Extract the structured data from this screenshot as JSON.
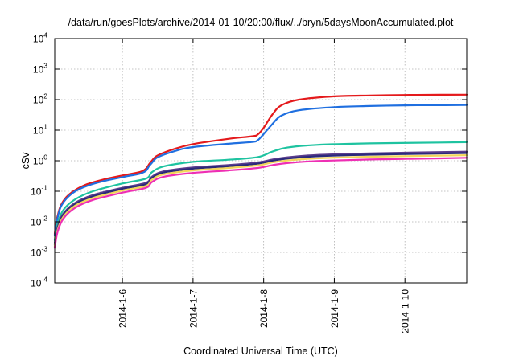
{
  "chart_data": {
    "type": "line",
    "title": "/data/run/goesPlots/archive/2014-01-10/20:00/flux/../bryn/5daysMoonAccumulated.plot",
    "xlabel": "Coordinated Universal Time (UTC)",
    "ylabel": "cSv",
    "y_scale": "log",
    "xlim": [
      "2014-01-05 01:00",
      "2014-01-10 21:00"
    ],
    "ylim": [
      0.0001,
      10000
    ],
    "grid": true,
    "x_ticks": [
      "2014-1-6",
      "2014-1-7",
      "2014-1-8",
      "2014-1-9",
      "2014-1-10"
    ],
    "y_ticks": [
      {
        "base": "10",
        "exp": "-4"
      },
      {
        "base": "10",
        "exp": "-3"
      },
      {
        "base": "10",
        "exp": "-2"
      },
      {
        "base": "10",
        "exp": "-1"
      },
      {
        "base": "10",
        "exp": "0"
      },
      {
        "base": "10",
        "exp": "1"
      },
      {
        "base": "10",
        "exp": "2"
      },
      {
        "base": "10",
        "exp": "3"
      },
      {
        "base": "10",
        "exp": "4"
      }
    ],
    "series": [
      {
        "color": "#e41a1c",
        "x": [
          "2014-01-05 01:00",
          "2014-01-05 01:30",
          "2014-01-05 02:00",
          "2014-01-05 03:00",
          "2014-01-05 05:00",
          "2014-01-05 08:00",
          "2014-01-05 12:00",
          "2014-01-05 18:00",
          "2014-01-06 00:00",
          "2014-01-06 06:00",
          "2014-01-06 08:00",
          "2014-01-06 09:00",
          "2014-01-06 10:00",
          "2014-01-06 12:00",
          "2014-01-06 18:00",
          "2014-01-07 00:00",
          "2014-01-07 12:00",
          "2014-01-07 20:00",
          "2014-01-07 22:00",
          "2014-01-08 00:00",
          "2014-01-08 03:00",
          "2014-01-08 06:00",
          "2014-01-08 12:00",
          "2014-01-09 00:00",
          "2014-01-09 12:00",
          "2014-01-10 00:00",
          "2014-01-10 12:00",
          "2014-01-10 21:00"
        ],
        "y": [
          0.004,
          0.009,
          0.016,
          0.033,
          0.065,
          0.11,
          0.17,
          0.25,
          0.33,
          0.43,
          0.55,
          0.75,
          1.0,
          1.5,
          2.5,
          3.5,
          5.2,
          6.3,
          7.2,
          12,
          33,
          65,
          100,
          128,
          137,
          142,
          145,
          146
        ]
      },
      {
        "color": "#1f6fe0",
        "x": [
          "2014-01-05 01:00",
          "2014-01-05 01:30",
          "2014-01-05 02:00",
          "2014-01-05 03:00",
          "2014-01-05 05:00",
          "2014-01-05 08:00",
          "2014-01-05 12:00",
          "2014-01-05 18:00",
          "2014-01-06 00:00",
          "2014-01-06 06:00",
          "2014-01-06 08:00",
          "2014-01-06 09:00",
          "2014-01-06 10:00",
          "2014-01-06 12:00",
          "2014-01-06 18:00",
          "2014-01-07 00:00",
          "2014-01-07 12:00",
          "2014-01-07 20:00",
          "2014-01-07 22:00",
          "2014-01-08 00:00",
          "2014-01-08 03:00",
          "2014-01-08 06:00",
          "2014-01-08 12:00",
          "2014-01-09 00:00",
          "2014-01-09 12:00",
          "2014-01-10 00:00",
          "2014-01-10 12:00",
          "2014-01-10 21:00"
        ],
        "y": [
          0.0035,
          0.008,
          0.014,
          0.03,
          0.058,
          0.1,
          0.15,
          0.22,
          0.29,
          0.38,
          0.47,
          0.65,
          0.85,
          1.3,
          2.1,
          2.8,
          3.6,
          4.1,
          4.7,
          7.5,
          16,
          30,
          45,
          57,
          62,
          65,
          66,
          67
        ]
      },
      {
        "color": "#1ec3a0",
        "x": [
          "2014-01-05 01:00",
          "2014-01-05 02:00",
          "2014-01-05 04:00",
          "2014-01-05 08:00",
          "2014-01-05 14:00",
          "2014-01-06 00:00",
          "2014-01-06 08:00",
          "2014-01-06 10:00",
          "2014-01-06 14:00",
          "2014-01-07 00:00",
          "2014-01-07 12:00",
          "2014-01-07 22:00",
          "2014-01-08 03:00",
          "2014-01-08 08:00",
          "2014-01-08 18:00",
          "2014-01-09 12:00",
          "2014-01-10 12:00",
          "2014-01-10 21:00"
        ],
        "y": [
          0.0025,
          0.009,
          0.025,
          0.055,
          0.1,
          0.18,
          0.26,
          0.42,
          0.65,
          0.92,
          1.08,
          1.32,
          2.0,
          2.7,
          3.3,
          3.7,
          3.95,
          4.05
        ]
      },
      {
        "color": "#5a3c8c",
        "x": [
          "2014-01-05 01:00",
          "2014-01-05 02:00",
          "2014-01-05 04:00",
          "2014-01-05 08:00",
          "2014-01-05 14:00",
          "2014-01-06 00:00",
          "2014-01-06 08:00",
          "2014-01-06 10:00",
          "2014-01-06 14:00",
          "2014-01-07 00:00",
          "2014-01-07 12:00",
          "2014-01-07 22:00",
          "2014-01-08 03:00",
          "2014-01-08 08:00",
          "2014-01-08 18:00",
          "2014-01-09 12:00",
          "2014-01-10 12:00",
          "2014-01-10 21:00"
        ],
        "y": [
          0.002,
          0.007,
          0.019,
          0.042,
          0.075,
          0.13,
          0.19,
          0.3,
          0.45,
          0.6,
          0.72,
          0.88,
          1.1,
          1.3,
          1.55,
          1.75,
          1.92,
          1.98
        ]
      },
      {
        "color": "#2a2a7a",
        "x": [
          "2014-01-05 01:00",
          "2014-01-05 02:00",
          "2014-01-05 04:00",
          "2014-01-05 08:00",
          "2014-01-05 14:00",
          "2014-01-06 00:00",
          "2014-01-06 08:00",
          "2014-01-06 10:00",
          "2014-01-06 14:00",
          "2014-01-07 00:00",
          "2014-01-07 12:00",
          "2014-01-07 22:00",
          "2014-01-08 03:00",
          "2014-01-08 08:00",
          "2014-01-08 18:00",
          "2014-01-09 12:00",
          "2014-01-10 12:00",
          "2014-01-10 21:00"
        ],
        "y": [
          0.0018,
          0.006,
          0.017,
          0.038,
          0.068,
          0.12,
          0.17,
          0.27,
          0.41,
          0.55,
          0.66,
          0.8,
          1.0,
          1.18,
          1.4,
          1.58,
          1.72,
          1.78
        ]
      },
      {
        "color": "#f2d65a",
        "x": [
          "2014-01-05 01:00",
          "2014-01-05 02:00",
          "2014-01-05 04:00",
          "2014-01-05 08:00",
          "2014-01-05 14:00",
          "2014-01-06 00:00",
          "2014-01-06 08:00",
          "2014-01-06 10:00",
          "2014-01-06 14:00",
          "2014-01-07 00:00",
          "2014-01-07 12:00",
          "2014-01-07 22:00",
          "2014-01-08 03:00",
          "2014-01-08 08:00",
          "2014-01-08 18:00",
          "2014-01-09 12:00",
          "2014-01-10 12:00",
          "2014-01-10 21:00"
        ],
        "y": [
          0.0016,
          0.0055,
          0.015,
          0.034,
          0.06,
          0.105,
          0.15,
          0.24,
          0.36,
          0.48,
          0.58,
          0.7,
          0.88,
          1.02,
          1.2,
          1.35,
          1.47,
          1.52
        ]
      },
      {
        "color": "#ee2fb4",
        "x": [
          "2014-01-05 01:00",
          "2014-01-05 02:00",
          "2014-01-05 04:00",
          "2014-01-05 08:00",
          "2014-01-05 14:00",
          "2014-01-06 00:00",
          "2014-01-06 08:00",
          "2014-01-06 10:00",
          "2014-01-06 14:00",
          "2014-01-07 00:00",
          "2014-01-07 12:00",
          "2014-01-07 22:00",
          "2014-01-08 03:00",
          "2014-01-08 08:00",
          "2014-01-08 18:00",
          "2014-01-09 12:00",
          "2014-01-10 12:00",
          "2014-01-10 21:00"
        ],
        "y": [
          0.0014,
          0.0048,
          0.013,
          0.029,
          0.052,
          0.09,
          0.13,
          0.2,
          0.3,
          0.4,
          0.48,
          0.58,
          0.72,
          0.84,
          0.98,
          1.1,
          1.2,
          1.25
        ]
      }
    ]
  }
}
